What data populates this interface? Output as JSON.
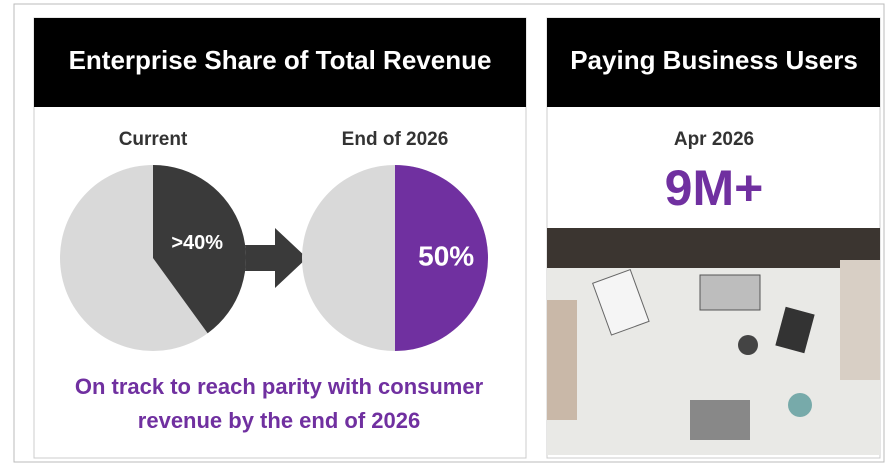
{
  "chart_data": [
    {
      "type": "pie",
      "title": "Current",
      "values": [
        40
      ],
      "value_labels": [
        ">40%"
      ],
      "color": "#3a3a3a"
    },
    {
      "type": "pie",
      "title": "End of 2026",
      "values": [
        50
      ],
      "value_labels": [
        "50%"
      ],
      "color": "#7030a0"
    }
  ],
  "left_panel": {
    "title": "Enterprise Share of Total Revenue",
    "caption": [
      "On track to reach parity with consumer",
      "revenue by the end of 2026"
    ]
  },
  "right_panel": {
    "title": "Paying Business Users",
    "date": "Apr 2026",
    "metric": "9M+"
  }
}
